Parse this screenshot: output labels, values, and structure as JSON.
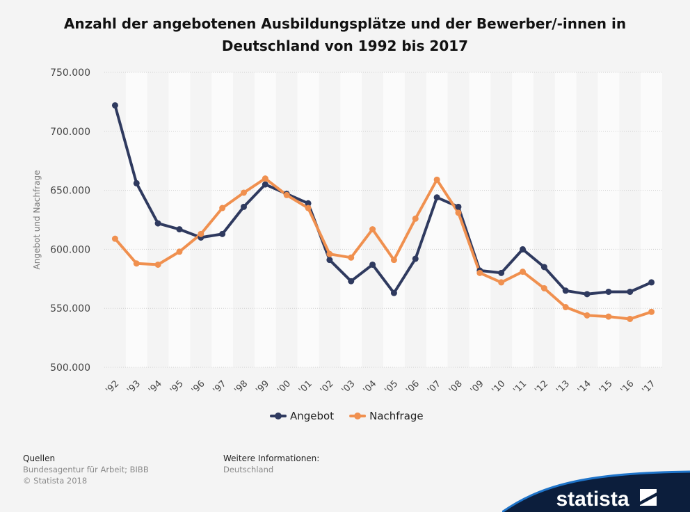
{
  "title_line1": "Anzahl der angebotenen Ausbildungsplätze und der Bewerber/-innen in",
  "title_line2": "Deutschland von 1992 bis 2017",
  "chart_data": {
    "type": "line",
    "categories": [
      "'92",
      "'93",
      "'94",
      "'95",
      "'96",
      "'97",
      "'98",
      "'99",
      "'00",
      "'01",
      "'02",
      "'03",
      "'04",
      "'05",
      "'06",
      "'07",
      "'08",
      "'09",
      "'10",
      "'11",
      "'12",
      "'13",
      "'14",
      "'15",
      "'16",
      "'17"
    ],
    "ylabel": "Angebot und Nachfrage",
    "ylim": [
      500000,
      750000
    ],
    "yticks": [
      500000,
      550000,
      600000,
      650000,
      700000,
      750000
    ],
    "ytick_labels": [
      "500.000",
      "550.000",
      "600.000",
      "650.000",
      "700.000",
      "750.000"
    ],
    "grid": true,
    "legend_position": "bottom",
    "series": [
      {
        "name": "Angebot",
        "color": "#2f3a5f",
        "values": [
          722000,
          656000,
          622000,
          617000,
          610000,
          613000,
          636000,
          655000,
          647000,
          639000,
          591000,
          573000,
          587000,
          563000,
          592000,
          644000,
          636000,
          582000,
          580000,
          600000,
          585000,
          565000,
          562000,
          564000,
          564000,
          572000
        ]
      },
      {
        "name": "Nachfrage",
        "color": "#f0904f",
        "values": [
          609000,
          588000,
          587000,
          598000,
          613000,
          635000,
          648000,
          660000,
          646000,
          635000,
          596000,
          593000,
          617000,
          591000,
          626000,
          659000,
          631000,
          580000,
          572000,
          581000,
          567000,
          551000,
          544000,
          543000,
          541000,
          547000
        ]
      }
    ]
  },
  "footer": {
    "sources_heading": "Quellen",
    "sources_line1": "Bundesagentur für Arbeit; BIBB",
    "sources_line2": "© Statista 2018",
    "info_heading": "Weitere Informationen:",
    "info_line1": "Deutschland"
  },
  "brand": {
    "name": "statista"
  }
}
